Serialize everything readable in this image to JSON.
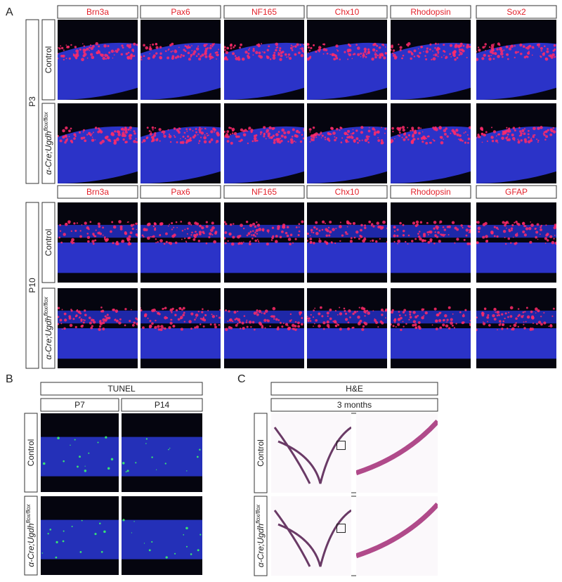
{
  "panel_a": {
    "label": "A",
    "sections": [
      {
        "age": "P3",
        "markers": [
          "Brn3a",
          "Pax6",
          "NF165",
          "Chx10",
          "Rhodopsin",
          "Sox2"
        ],
        "rows": [
          "Control",
          {
            "text": "α-Cre;Ugdh",
            "sup": "flox/flox"
          }
        ]
      },
      {
        "age": "P10",
        "markers": [
          "Brn3a",
          "Pax6",
          "NF165",
          "Chx10",
          "Rhodopsin",
          "GFAP"
        ],
        "rows": [
          "Control",
          {
            "text": "α-Cre;Ugdh",
            "sup": "flox/flox"
          }
        ]
      }
    ]
  },
  "panel_b": {
    "label": "B",
    "stain": "TUNEL",
    "ages": [
      "P7",
      "P14"
    ],
    "rows": [
      "Control",
      {
        "text": "α-Cre;Ugdh",
        "sup": "flox/flox"
      }
    ]
  },
  "panel_c": {
    "label": "C",
    "stain": "H&E",
    "age": "3 months",
    "rows": [
      "Control",
      {
        "text": "α-Cre;Ugdh",
        "sup": "flox/flox"
      }
    ]
  }
}
